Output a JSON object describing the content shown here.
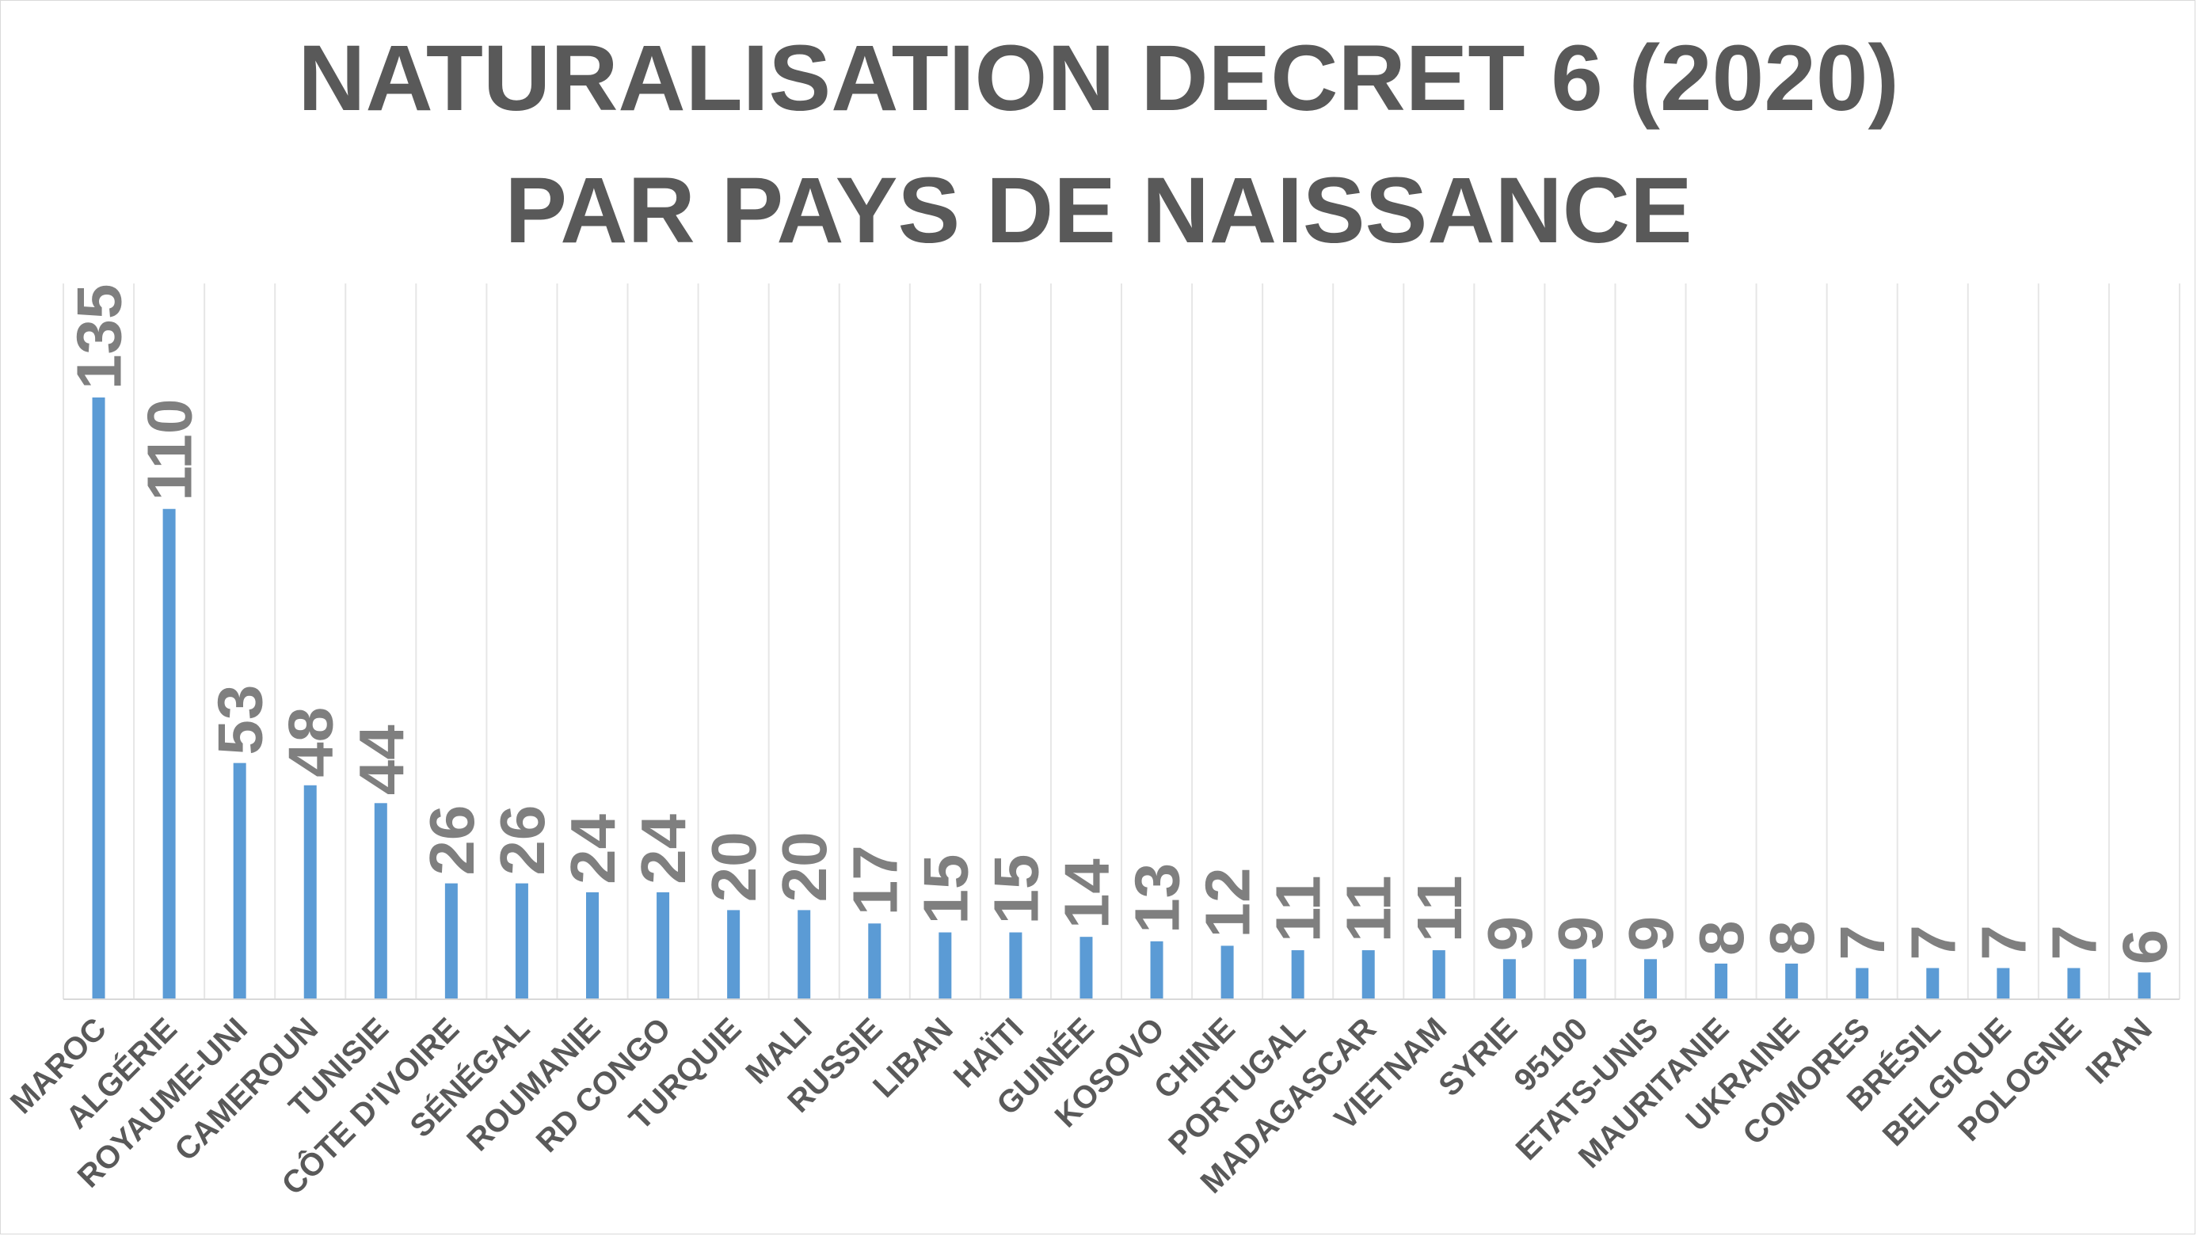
{
  "chart_data": {
    "type": "bar",
    "title": [
      "NATURALISATION DECRET 6 (2020)",
      "PAR PAYS DE NAISSANCE"
    ],
    "xlabel": "",
    "ylabel": "",
    "categories": [
      "MAROC",
      "ALGÉRIE",
      "ROYAUME-UNI",
      "CAMEROUN",
      "TUNISIE",
      "CÔTE D'IVOIRE",
      "SÉNÉGAL",
      "ROUMANIE",
      "RD CONGO",
      "TURQUIE",
      "MALI",
      "RUSSIE",
      "LIBAN",
      "HAÏTI",
      "GUINÉE",
      "KOSOVO",
      "CHINE",
      "PORTUGAL",
      "MADAGASCAR",
      "VIETNAM",
      "SYRIE",
      "95100",
      "ETATS-UNIS",
      "MAURITANIE",
      "UKRAINE",
      "COMORES",
      "BRÉSIL",
      "BELGIQUE",
      "POLOGNE",
      "IRAN"
    ],
    "values": [
      135,
      110,
      53,
      48,
      44,
      26,
      26,
      24,
      24,
      20,
      20,
      17,
      15,
      15,
      14,
      13,
      12,
      11,
      11,
      11,
      9,
      9,
      9,
      8,
      8,
      7,
      7,
      7,
      7,
      6
    ],
    "ylim": [
      0,
      135
    ],
    "grid": "vertical",
    "legend": "none",
    "data_labels": true,
    "bar_color": "#5b9bd5",
    "label_color": "#7f7f7f",
    "title_color": "#595959"
  }
}
